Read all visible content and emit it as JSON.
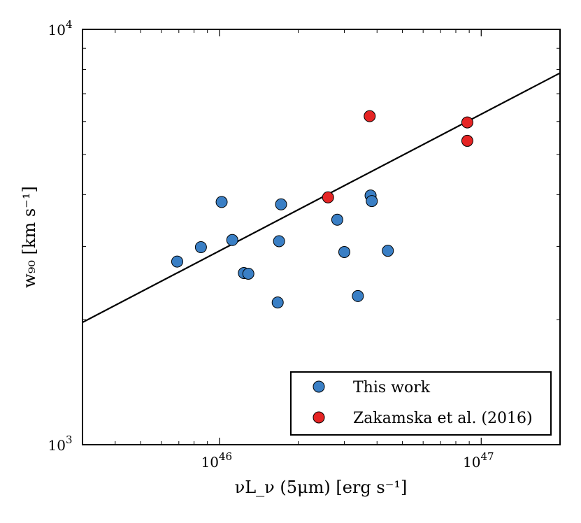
{
  "chart_data": {
    "type": "scatter",
    "title": "",
    "xlabel": "νL_ν (5μm) [erg s⁻¹]",
    "ylabel": "w₉₀ [km s⁻¹]",
    "xscale": "log",
    "yscale": "log",
    "xlim": [
      3e+45,
      2e+47
    ],
    "ylim": [
      1000,
      10000
    ],
    "xticks": [
      {
        "value": 1e+46,
        "base": "10",
        "exp": "46"
      },
      {
        "value": 1e+47,
        "base": "10",
        "exp": "47"
      }
    ],
    "yticks": [
      {
        "value": 1000,
        "base": "10",
        "exp": "3"
      },
      {
        "value": 10000,
        "base": "10",
        "exp": "4"
      }
    ],
    "grid": false,
    "legend_position": "lower-right",
    "series": [
      {
        "name": "This work",
        "color": "#3a7fc5",
        "points": [
          [
            6.9e+45,
            2760
          ],
          [
            8.5e+45,
            2990
          ],
          [
            1.02e+46,
            3840
          ],
          [
            1.12e+46,
            3110
          ],
          [
            1.24e+46,
            2590
          ],
          [
            1.29e+46,
            2580
          ],
          [
            1.67e+46,
            2200
          ],
          [
            1.69e+46,
            3090
          ],
          [
            1.72e+46,
            3790
          ],
          [
            2.82e+46,
            3480
          ],
          [
            3e+46,
            2910
          ],
          [
            3.38e+46,
            2280
          ],
          [
            3.78e+46,
            3980
          ],
          [
            3.82e+46,
            3860
          ],
          [
            4.4e+46,
            2930
          ]
        ]
      },
      {
        "name": "Zakamska et al. (2016)",
        "color": "#e52424",
        "points": [
          [
            2.6e+46,
            3940
          ],
          [
            3.75e+46,
            6180
          ],
          [
            8.85e+46,
            5970
          ],
          [
            8.85e+46,
            5390
          ]
        ]
      }
    ],
    "fit_line": {
      "color": "#000000",
      "points": [
        [
          3e+45,
          1970
        ],
        [
          2e+47,
          7850
        ]
      ]
    },
    "legend": [
      {
        "label": "This work",
        "color": "#3a7fc5"
      },
      {
        "label": "Zakamska et al. (2016)",
        "color": "#e52424"
      }
    ]
  }
}
